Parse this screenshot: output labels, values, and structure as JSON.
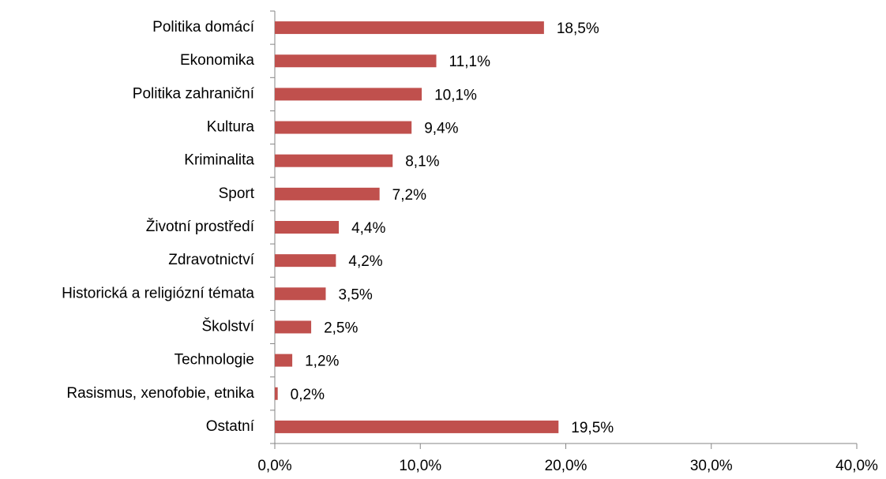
{
  "chart_data": {
    "type": "bar",
    "orientation": "horizontal",
    "categories": [
      "Politika domácí",
      "Ekonomika",
      "Politika zahraniční",
      "Kultura",
      "Kriminalita",
      "Sport",
      "Životní prostředí",
      "Zdravotnictví",
      "Historická a religiózní témata",
      "Školství",
      "Technologie",
      "Rasismus, xenofobie, etnika",
      "Ostatní"
    ],
    "values": [
      18.5,
      11.1,
      10.1,
      9.4,
      8.1,
      7.2,
      4.4,
      4.2,
      3.5,
      2.5,
      1.2,
      0.2,
      19.5
    ],
    "value_labels": [
      "18,5%",
      "11,1%",
      "10,1%",
      "9,4%",
      "8,1%",
      "7,2%",
      "4,4%",
      "4,2%",
      "3,5%",
      "2,5%",
      "1,2%",
      "0,2%",
      "19,5%"
    ],
    "color": "#c0504d",
    "xlim": [
      0,
      40
    ],
    "xticks": [
      {
        "value": 0,
        "label": "0,0%"
      },
      {
        "value": 10,
        "label": "10,0%"
      },
      {
        "value": 20,
        "label": "20,0%"
      },
      {
        "value": 30,
        "label": "30,0%"
      },
      {
        "value": 40,
        "label": "40,0%"
      }
    ],
    "grid": false
  }
}
